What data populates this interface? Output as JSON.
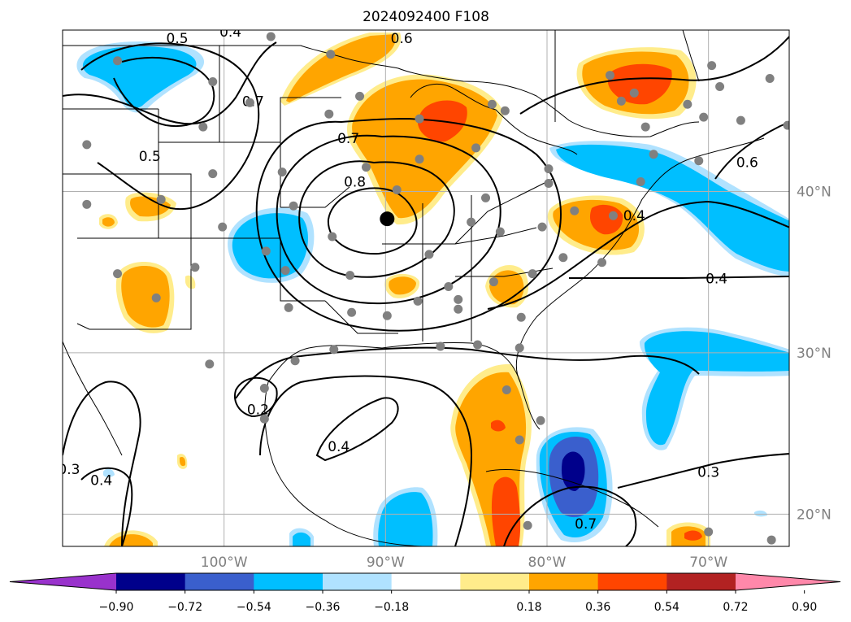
{
  "title": "2024092400 F108",
  "map": {
    "lon_range": [
      -110,
      -65
    ],
    "lat_range": [
      18,
      50
    ],
    "lon_ticks": [
      {
        "lon": -100,
        "label": "100°W"
      },
      {
        "lon": -90,
        "label": "90°W"
      },
      {
        "lon": -80,
        "label": "80°W"
      },
      {
        "lon": -70,
        "label": "70°W"
      }
    ],
    "lat_ticks": [
      {
        "lat": 40,
        "label": "40°N"
      },
      {
        "lat": 30,
        "label": "30°N"
      },
      {
        "lat": 20,
        "label": "20°N"
      }
    ],
    "gridline_color": "#b0b0b0",
    "contour_labels": [
      {
        "text": "0.5",
        "lon": -102.9,
        "lat": 49.5
      },
      {
        "text": "0.4",
        "lon": -99.6,
        "lat": 49.9
      },
      {
        "text": "0.6",
        "lon": -89.0,
        "lat": 49.5
      },
      {
        "text": "0.7",
        "lon": -98.2,
        "lat": 45.6
      },
      {
        "text": "0.5",
        "lon": -104.6,
        "lat": 42.2
      },
      {
        "text": "0.7",
        "lon": -92.3,
        "lat": 43.3
      },
      {
        "text": "0.8",
        "lon": -91.9,
        "lat": 40.6
      },
      {
        "text": "0.4",
        "lon": -74.6,
        "lat": 38.5
      },
      {
        "text": "0.4",
        "lon": -69.5,
        "lat": 34.6
      },
      {
        "text": "0.6",
        "lon": -67.6,
        "lat": 41.8
      },
      {
        "text": "0.2",
        "lon": -97.9,
        "lat": 26.5
      },
      {
        "text": "0.4",
        "lon": -92.9,
        "lat": 24.2
      },
      {
        "text": "0.3",
        "lon": -109.6,
        "lat": 22.8
      },
      {
        "text": "0.4",
        "lon": -107.6,
        "lat": 22.1
      },
      {
        "text": "0.3",
        "lon": -70.0,
        "lat": 22.6
      },
      {
        "text": "0.7",
        "lon": -77.6,
        "lat": 19.4
      }
    ],
    "marker": {
      "lon": -89.9,
      "lat": 38.3,
      "color": "#000000"
    },
    "station_points": [
      [
        -97.1,
        49.6
      ],
      [
        -93.4,
        48.5
      ],
      [
        -106.6,
        48.1
      ],
      [
        -100.7,
        46.8
      ],
      [
        -98.4,
        45.5
      ],
      [
        -93.5,
        44.8
      ],
      [
        -101.3,
        44.0
      ],
      [
        -108.5,
        42.9
      ],
      [
        -100.7,
        41.1
      ],
      [
        -96.4,
        41.2
      ],
      [
        -91.2,
        41.5
      ],
      [
        -89.3,
        40.1
      ],
      [
        -103.9,
        39.5
      ],
      [
        -108.5,
        39.2
      ],
      [
        -95.7,
        39.1
      ],
      [
        -100.1,
        37.8
      ],
      [
        -93.3,
        37.2
      ],
      [
        -97.4,
        36.3
      ],
      [
        -92.2,
        34.8
      ],
      [
        -87.3,
        36.1
      ],
      [
        -96.2,
        35.1
      ],
      [
        -106.6,
        34.9
      ],
      [
        -101.8,
        35.3
      ],
      [
        -104.2,
        33.4
      ],
      [
        -96.0,
        32.8
      ],
      [
        -92.1,
        32.5
      ],
      [
        -89.9,
        32.3
      ],
      [
        -88.0,
        33.2
      ],
      [
        -85.5,
        33.3
      ],
      [
        -86.6,
        30.4
      ],
      [
        -84.3,
        30.5
      ],
      [
        -81.7,
        30.3
      ],
      [
        -93.2,
        30.2
      ],
      [
        -95.6,
        29.5
      ],
      [
        -100.9,
        29.3
      ],
      [
        -97.5,
        27.8
      ],
      [
        -97.5,
        25.9
      ],
      [
        -82.5,
        27.7
      ],
      [
        -81.7,
        24.6
      ],
      [
        -80.4,
        25.8
      ],
      [
        -81.2,
        19.3
      ],
      [
        -82.6,
        45.0
      ],
      [
        -84.4,
        42.7
      ],
      [
        -83.4,
        45.4
      ],
      [
        -87.9,
        44.5
      ],
      [
        -91.6,
        45.9
      ],
      [
        -87.9,
        42.0
      ],
      [
        -79.9,
        41.4
      ],
      [
        -79.9,
        40.5
      ],
      [
        -78.3,
        38.8
      ],
      [
        -83.8,
        39.6
      ],
      [
        -84.7,
        38.1
      ],
      [
        -80.3,
        37.8
      ],
      [
        -79.0,
        35.9
      ],
      [
        -80.9,
        34.9
      ],
      [
        -83.3,
        34.4
      ],
      [
        -86.1,
        34.1
      ],
      [
        -85.5,
        32.7
      ],
      [
        -76.6,
        35.6
      ],
      [
        -81.6,
        32.2
      ],
      [
        -82.9,
        37.5
      ],
      [
        -75.9,
        38.5
      ],
      [
        -74.2,
        40.6
      ],
      [
        -73.4,
        42.3
      ],
      [
        -73.9,
        44.0
      ],
      [
        -70.3,
        44.6
      ],
      [
        -68.0,
        44.4
      ],
      [
        -69.8,
        47.8
      ],
      [
        -66.2,
        47.0
      ],
      [
        -65.1,
        44.1
      ],
      [
        -69.3,
        46.5
      ],
      [
        -71.3,
        45.4
      ],
      [
        -74.6,
        46.1
      ],
      [
        -76.1,
        47.2
      ],
      [
        -75.4,
        45.6
      ],
      [
        -70.6,
        41.9
      ],
      [
        -70.0,
        18.9
      ],
      [
        -66.1,
        18.4
      ]
    ]
  },
  "colorbar": {
    "tick_labels": [
      "−0.90",
      "−0.72",
      "−0.54",
      "−0.36",
      "−0.18",
      "0.18",
      "0.36",
      "0.54",
      "0.72",
      "0.90"
    ],
    "colors": [
      "#9932cc",
      "#00008b",
      "#3a5fcd",
      "#00bfff",
      "#b0e2ff",
      "#ffffff",
      "#ffec8b",
      "#ffa500",
      "#ff4500",
      "#b22222",
      "#ff88aa"
    ]
  },
  "shade_colors": {
    "dark_blue": "#00008b",
    "mid_blue": "#3a5fcd",
    "sky_blue": "#00bfff",
    "light_blue": "#b0e2ff",
    "light_yellow": "#ffec8b",
    "orange": "#ffa500",
    "red_orange": "#ff4500",
    "contour": "#000000"
  }
}
